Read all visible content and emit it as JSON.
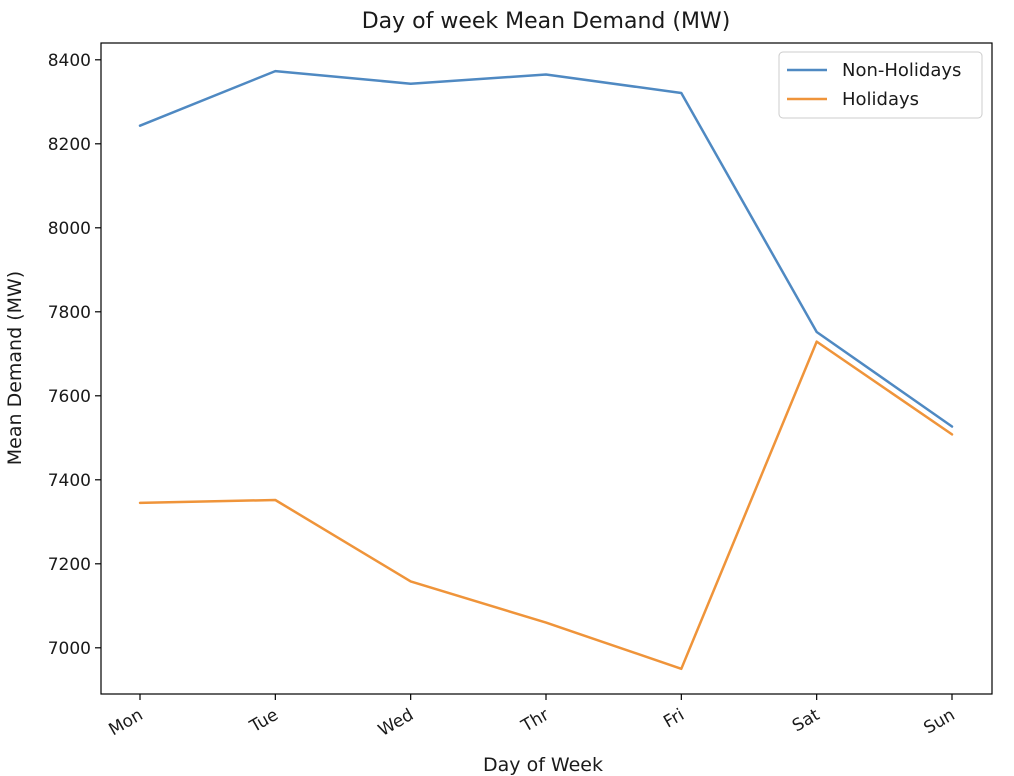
{
  "chart_data": {
    "type": "line",
    "title": "Day of week Mean Demand (MW)",
    "xlabel": "Day of Week",
    "ylabel": "Mean Demand (MW)",
    "categories": [
      "Mon",
      "Tue",
      "Wed",
      "Thr",
      "Fri",
      "Sat",
      "Sun"
    ],
    "ylim": [
      6890,
      8440
    ],
    "yticks": [
      7000,
      7200,
      7400,
      7600,
      7800,
      8000,
      8200,
      8400
    ],
    "grid": false,
    "legend_position": "top-right",
    "series": [
      {
        "name": "Non-Holidays",
        "color": "#4f89c2",
        "values": [
          8243,
          8373,
          8343,
          8365,
          8321,
          7752,
          7527
        ]
      },
      {
        "name": "Holidays",
        "color": "#ef943a",
        "values": [
          7345,
          7352,
          7158,
          7060,
          6950,
          7729,
          7508
        ]
      }
    ]
  }
}
